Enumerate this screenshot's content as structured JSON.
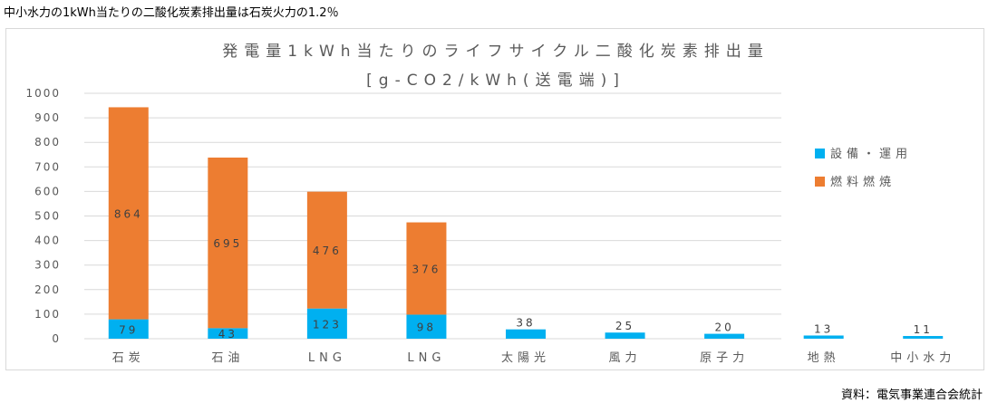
{
  "heading": "中小水力の1kWh当たりの二酸化炭素排出量は石炭火力の1.2％",
  "source": "資料：電気事業連合会統計",
  "colors": {
    "equipment": "#00B0F0",
    "fuel": "#ED7D31",
    "grid": "#d9d9d9",
    "text": "#595959"
  },
  "chart_data": {
    "type": "bar",
    "stacked": true,
    "title": "発電量1kWh当たりのライフサイクル二酸化炭素排出量",
    "subtitle": "[g-CO2/kWh(送電端)]",
    "categories": [
      "石炭",
      "石油",
      "LNG",
      "LNG",
      "太陽光",
      "風力",
      "原子力",
      "地熱",
      "中小水力"
    ],
    "series": [
      {
        "name": "設備・運用",
        "color": "#00B0F0",
        "values": [
          79,
          43,
          123,
          98,
          38,
          25,
          20,
          13,
          11
        ]
      },
      {
        "name": "燃料燃焼",
        "color": "#ED7D31",
        "values": [
          864,
          695,
          476,
          376,
          0,
          0,
          0,
          0,
          0
        ]
      }
    ],
    "ylim": [
      0,
      1000
    ],
    "yticks": [
      0,
      100,
      200,
      300,
      400,
      500,
      600,
      700,
      800,
      900,
      1000
    ],
    "grid": true,
    "legend_position": "right"
  }
}
